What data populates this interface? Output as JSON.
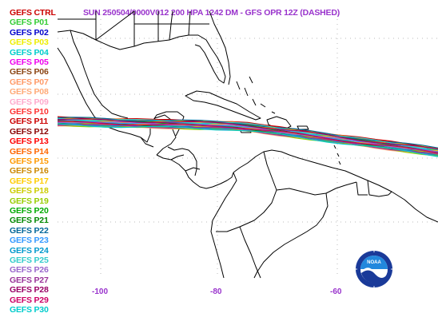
{
  "title": "SUN 250504/0000V012  200 HPA 1242 DM - GFS OPR 12Z (DASHED)",
  "legend": [
    {
      "label": "GEFS CTRL",
      "color": "#cc0000"
    },
    {
      "label": "GEFS P01",
      "color": "#33cc33"
    },
    {
      "label": "GEFS P02",
      "color": "#0000cc"
    },
    {
      "label": "GEFS P03",
      "color": "#eeee00"
    },
    {
      "label": "GEFS P04",
      "color": "#00cccc"
    },
    {
      "label": "GEFS P05",
      "color": "#ee00ee"
    },
    {
      "label": "GEFS P06",
      "color": "#8b4513"
    },
    {
      "label": "GEFS P07",
      "color": "#ff9966"
    },
    {
      "label": "GEFS P08",
      "color": "#ffaa77"
    },
    {
      "label": "GEFS P09",
      "color": "#ffaacc"
    },
    {
      "label": "GEFS P10",
      "color": "#ff3333"
    },
    {
      "label": "GEFS P11",
      "color": "#cc0000"
    },
    {
      "label": "GEFS P12",
      "color": "#8b0000"
    },
    {
      "label": "GEFS P13",
      "color": "#ff0000"
    },
    {
      "label": "GEFS P14",
      "color": "#ff6600"
    },
    {
      "label": "GEFS P15",
      "color": "#ff9900"
    },
    {
      "label": "GEFS P16",
      "color": "#cc8800"
    },
    {
      "label": "GEFS P17",
      "color": "#ffcc00"
    },
    {
      "label": "GEFS P18",
      "color": "#cccc00"
    },
    {
      "label": "GEFS P19",
      "color": "#99cc00"
    },
    {
      "label": "GEFS P20",
      "color": "#00aa00"
    },
    {
      "label": "GEFS P21",
      "color": "#008800"
    },
    {
      "label": "GEFS P22",
      "color": "#006699"
    },
    {
      "label": "GEFS P23",
      "color": "#3399ff"
    },
    {
      "label": "GEFS P24",
      "color": "#0099cc"
    },
    {
      "label": "GEFS P25",
      "color": "#33cccc"
    },
    {
      "label": "GEFS P26",
      "color": "#9966cc"
    },
    {
      "label": "GEFS P27",
      "color": "#993399"
    },
    {
      "label": "GEFS P28",
      "color": "#990066"
    },
    {
      "label": "GEFS P29",
      "color": "#cc0066"
    },
    {
      "label": "GEFS P30",
      "color": "#00cccc"
    }
  ],
  "longitude_labels": [
    "-100",
    "-80",
    "-60"
  ],
  "logo_text": "NOAA",
  "colors": {
    "title": "#9933cc",
    "axis_labels": "#9933cc",
    "coastline": "#000000",
    "grid": "#9933cc"
  }
}
